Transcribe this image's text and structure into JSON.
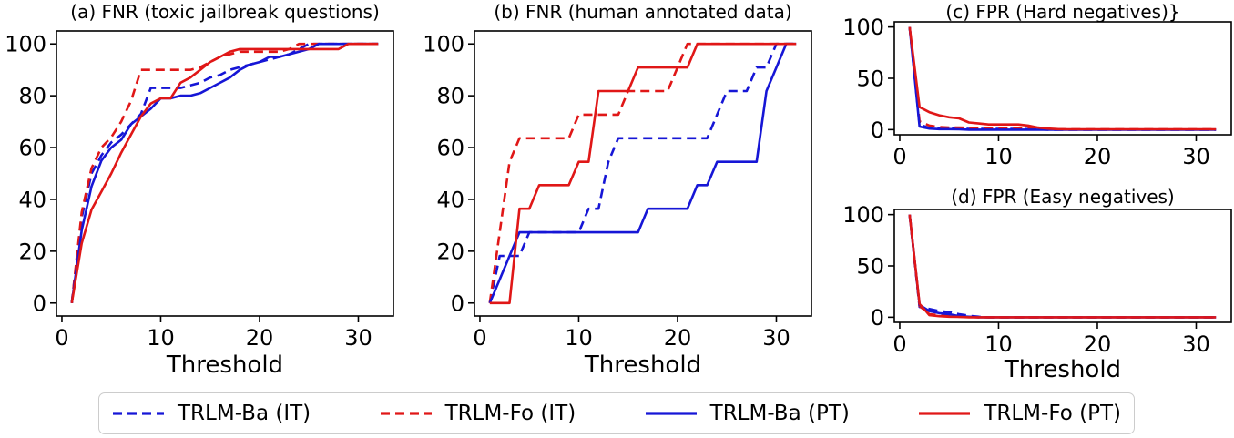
{
  "figure": {
    "background": "#ffffff",
    "xlabel_text": "Threshold"
  },
  "colors": {
    "blue": "#1616d6",
    "red": "#e01717",
    "axis": "#000000",
    "legend_border": "#cccccc"
  },
  "legend": {
    "entries": [
      {
        "label": "TRLM-Ba (IT)",
        "color": "blue",
        "style": "dashed"
      },
      {
        "label": "TRLM-Fo (IT)",
        "color": "red",
        "style": "dashed"
      },
      {
        "label": "TRLM-Ba (PT)",
        "color": "blue",
        "style": "solid"
      },
      {
        "label": "TRLM-Fo (PT)",
        "color": "red",
        "style": "solid"
      }
    ]
  },
  "chart_data": [
    {
      "id": "a",
      "type": "line",
      "title": "(a) FNR (toxic jailbreak questions)",
      "xlabel": "Threshold",
      "xlim": [
        -0.55,
        33.55
      ],
      "ylim": [
        -5,
        105
      ],
      "xticks": [
        0,
        10,
        20,
        30
      ],
      "yticks": [
        0,
        20,
        40,
        60,
        80,
        100
      ],
      "x": [
        1,
        2,
        3,
        4,
        5,
        6,
        7,
        8,
        9,
        10,
        11,
        12,
        13,
        14,
        15,
        16,
        17,
        18,
        19,
        20,
        21,
        22,
        23,
        24,
        25,
        26,
        27,
        28,
        29,
        30,
        31,
        32
      ],
      "series": [
        {
          "name": "TRLM-Ba (IT)",
          "color": "blue",
          "style": "dashed",
          "values": [
            0,
            33,
            50,
            57,
            62,
            65,
            69,
            73,
            83,
            83,
            83,
            83,
            84,
            85,
            87,
            88,
            90,
            91,
            92,
            93,
            94,
            95,
            96,
            98,
            100,
            100,
            100,
            100,
            100,
            100,
            100,
            100
          ]
        },
        {
          "name": "TRLM-Fo (IT)",
          "color": "red",
          "style": "dashed",
          "values": [
            0,
            35,
            52,
            60,
            64,
            70,
            78,
            90,
            90,
            90,
            90,
            90,
            90,
            91,
            93,
            95,
            96,
            97,
            97,
            97,
            97,
            97,
            98,
            100,
            100,
            100,
            100,
            100,
            100,
            100,
            100,
            100
          ]
        },
        {
          "name": "TRLM-Ba (PT)",
          "color": "blue",
          "style": "solid",
          "values": [
            0,
            28,
            45,
            55,
            60,
            63,
            69,
            72,
            75,
            79,
            79,
            80,
            80,
            81,
            83,
            85,
            87,
            90,
            92,
            93,
            95,
            95,
            96,
            97,
            98,
            100,
            100,
            100,
            100,
            100,
            100,
            100
          ]
        },
        {
          "name": "TRLM-Fo (PT)",
          "color": "red",
          "style": "solid",
          "values": [
            0,
            23,
            36,
            43,
            50,
            58,
            65,
            72,
            77,
            79,
            79,
            85,
            87,
            90,
            93,
            95,
            97,
            98,
            98,
            98,
            98,
            98,
            98,
            98,
            98,
            98,
            98,
            98,
            100,
            100,
            100,
            100
          ]
        }
      ]
    },
    {
      "id": "b",
      "type": "line",
      "title": "(b) FNR (human annotated data)",
      "xlabel": "Threshold",
      "xlim": [
        -0.55,
        33.55
      ],
      "ylim": [
        -5,
        105
      ],
      "xticks": [
        0,
        10,
        20,
        30
      ],
      "yticks": [
        0,
        20,
        40,
        60,
        80,
        100
      ],
      "x": [
        1,
        2,
        3,
        4,
        5,
        6,
        7,
        8,
        9,
        10,
        11,
        12,
        13,
        14,
        15,
        16,
        17,
        18,
        19,
        20,
        21,
        22,
        23,
        24,
        25,
        26,
        27,
        28,
        29,
        30,
        31,
        32
      ],
      "series": [
        {
          "name": "TRLM-Ba (IT)",
          "color": "blue",
          "style": "dashed",
          "values": [
            0,
            18.2,
            18.2,
            18.2,
            27.3,
            27.3,
            27.3,
            27.3,
            27.3,
            27.3,
            36.4,
            36.4,
            54.5,
            63.6,
            63.6,
            63.6,
            63.6,
            63.6,
            63.6,
            63.6,
            63.6,
            63.6,
            63.6,
            72.7,
            81.8,
            81.8,
            81.8,
            90.9,
            90.9,
            100,
            100,
            100
          ]
        },
        {
          "name": "TRLM-Fo (IT)",
          "color": "red",
          "style": "dashed",
          "values": [
            0,
            27.3,
            54.5,
            63.6,
            63.6,
            63.6,
            63.6,
            63.6,
            63.6,
            72.7,
            72.7,
            72.7,
            72.7,
            72.7,
            81.8,
            81.8,
            81.8,
            81.8,
            81.8,
            90.9,
            100,
            100,
            100,
            100,
            100,
            100,
            100,
            100,
            100,
            100,
            100,
            100
          ]
        },
        {
          "name": "TRLM-Ba (PT)",
          "color": "blue",
          "style": "solid",
          "values": [
            0,
            9.1,
            18.2,
            27.3,
            27.3,
            27.3,
            27.3,
            27.3,
            27.3,
            27.3,
            27.3,
            27.3,
            27.3,
            27.3,
            27.3,
            27.3,
            36.4,
            36.4,
            36.4,
            36.4,
            36.4,
            45.5,
            45.5,
            54.5,
            54.5,
            54.5,
            54.5,
            54.5,
            81.8,
            90.9,
            100,
            100
          ]
        },
        {
          "name": "TRLM-Fo (PT)",
          "color": "red",
          "style": "solid",
          "values": [
            0,
            0,
            0,
            36.4,
            36.4,
            45.5,
            45.5,
            45.5,
            45.5,
            54.5,
            54.5,
            81.8,
            81.8,
            81.8,
            81.8,
            90.9,
            90.9,
            90.9,
            90.9,
            90.9,
            90.9,
            100,
            100,
            100,
            100,
            100,
            100,
            100,
            100,
            100,
            100,
            100
          ]
        }
      ]
    },
    {
      "id": "c",
      "type": "line",
      "title": "(c) FPR (Hard negatives)}",
      "xlabel": "",
      "xlim": [
        -0.55,
        33.55
      ],
      "ylim": [
        -5,
        105
      ],
      "xticks": [
        0,
        10,
        20,
        30
      ],
      "yticks": [
        0,
        50,
        100
      ],
      "x": [
        1,
        2,
        3,
        4,
        5,
        6,
        7,
        8,
        9,
        10,
        11,
        12,
        13,
        14,
        15,
        16,
        17,
        18,
        19,
        20,
        21,
        22,
        23,
        24,
        25,
        26,
        27,
        28,
        29,
        30,
        31,
        32
      ],
      "series": [
        {
          "name": "TRLM-Ba (IT)",
          "color": "blue",
          "style": "dashed",
          "values": [
            100,
            5,
            1.5,
            1,
            1,
            1,
            0.8,
            0.8,
            0.8,
            0.8,
            0.8,
            0.8,
            0.5,
            0.3,
            0,
            0,
            0,
            0,
            0,
            0,
            0,
            0,
            0,
            0,
            0,
            0,
            0,
            0,
            0,
            0,
            0,
            0
          ]
        },
        {
          "name": "TRLM-Fo (IT)",
          "color": "red",
          "style": "dashed",
          "values": [
            100,
            8,
            4,
            2.5,
            2,
            2,
            1.8,
            1.8,
            1.8,
            1.8,
            1.8,
            1.5,
            1.2,
            0.8,
            0.3,
            0.3,
            0.3,
            0.3,
            0.3,
            0.3,
            0.3,
            0.3,
            0.3,
            0.3,
            0.3,
            0.3,
            0.3,
            0.3,
            0.3,
            0.3,
            0.3,
            0.3
          ]
        },
        {
          "name": "TRLM-Ba (PT)",
          "color": "blue",
          "style": "solid",
          "values": [
            100,
            3,
            1,
            0.5,
            0.5,
            0.3,
            0,
            0,
            0,
            0,
            0,
            0,
            0,
            0,
            0,
            0,
            0,
            0,
            0,
            0,
            0,
            0,
            0,
            0,
            0,
            0,
            0,
            0,
            0,
            0,
            0,
            0
          ]
        },
        {
          "name": "TRLM-Fo (PT)",
          "color": "red",
          "style": "solid",
          "values": [
            100,
            22,
            17,
            14,
            12,
            11,
            7,
            6,
            5,
            5,
            5,
            5,
            4,
            2,
            1,
            0.5,
            0.3,
            0.3,
            0.3,
            0.3,
            0.3,
            0.3,
            0.3,
            0.3,
            0.3,
            0.3,
            0.3,
            0.3,
            0.3,
            0.3,
            0.3,
            0.3
          ]
        }
      ]
    },
    {
      "id": "d",
      "type": "line",
      "title": "(d) FPR (Easy negatives)",
      "xlabel": "Threshold",
      "xlim": [
        -0.55,
        33.55
      ],
      "ylim": [
        -5,
        105
      ],
      "xticks": [
        0,
        10,
        20,
        30
      ],
      "yticks": [
        0,
        50,
        100
      ],
      "x": [
        1,
        2,
        3,
        4,
        5,
        6,
        7,
        8,
        9,
        10,
        11,
        12,
        13,
        14,
        15,
        16,
        17,
        18,
        19,
        20,
        21,
        22,
        23,
        24,
        25,
        26,
        27,
        28,
        29,
        30,
        31,
        32
      ],
      "series": [
        {
          "name": "TRLM-Ba (IT)",
          "color": "blue",
          "style": "dashed",
          "values": [
            100,
            10,
            8,
            6,
            5,
            3,
            1.5,
            0.5,
            0,
            0,
            0,
            0,
            0,
            0,
            0,
            0,
            0,
            0,
            0,
            0,
            0,
            0,
            0,
            0,
            0,
            0,
            0,
            0,
            0,
            0,
            0,
            0
          ]
        },
        {
          "name": "TRLM-Fo (IT)",
          "color": "red",
          "style": "dashed",
          "values": [
            100,
            11,
            3,
            2,
            1,
            0.5,
            0.3,
            0,
            0,
            0,
            0,
            0,
            0,
            0,
            0,
            0,
            0,
            0,
            0,
            0,
            0,
            0,
            0,
            0,
            0,
            0,
            0,
            0,
            0,
            0,
            0,
            0
          ]
        },
        {
          "name": "TRLM-Ba (PT)",
          "color": "blue",
          "style": "solid",
          "values": [
            100,
            12,
            6,
            4,
            3,
            1,
            0.5,
            0,
            0,
            0,
            0,
            0,
            0,
            0,
            0,
            0,
            0,
            0,
            0,
            0,
            0,
            0,
            0,
            0,
            0,
            0,
            0,
            0,
            0,
            0,
            0,
            0
          ]
        },
        {
          "name": "TRLM-Fo (PT)",
          "color": "red",
          "style": "solid",
          "values": [
            100,
            13,
            2,
            1,
            0.5,
            0.3,
            0,
            0,
            0,
            0,
            0,
            0,
            0,
            0,
            0,
            0,
            0,
            0,
            0,
            0,
            0,
            0,
            0,
            0,
            0,
            0,
            0,
            0,
            0,
            0,
            0,
            0
          ]
        }
      ]
    }
  ]
}
